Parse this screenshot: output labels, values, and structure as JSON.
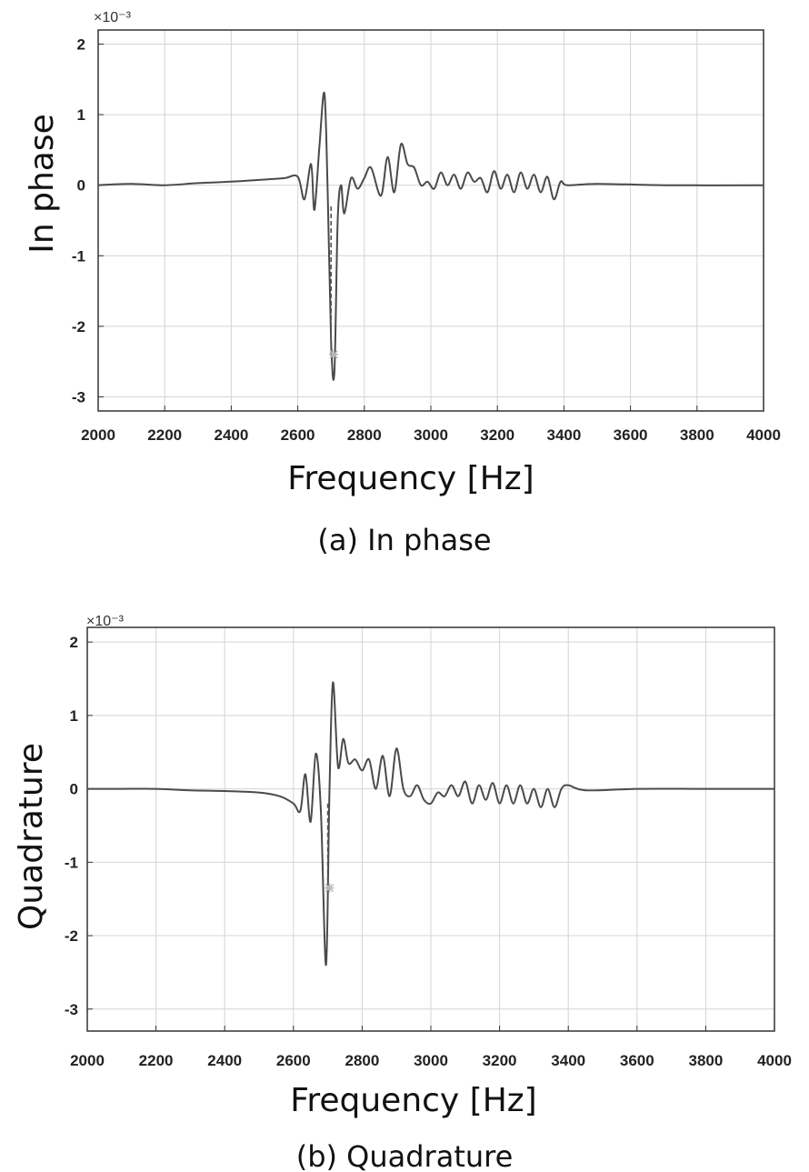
{
  "chart_data": [
    {
      "type": "line",
      "panel": "a",
      "caption": "(a) In phase",
      "xlabel": "Frequency [Hz]",
      "ylabel": "In phase",
      "exponent_label": "×10⁻³",
      "xlim": [
        2000,
        4000
      ],
      "ylim": [
        -3.2,
        2.2
      ],
      "grid": true,
      "xticks": [
        "2000",
        "2200",
        "2400",
        "2600",
        "2800",
        "3000",
        "3200",
        "3400",
        "3600",
        "3800",
        "4000"
      ],
      "yticks": [
        "2",
        "1",
        "0",
        "-1",
        "-2",
        "-3"
      ],
      "x": [
        2000,
        2100,
        2200,
        2300,
        2400,
        2500,
        2560,
        2600,
        2620,
        2640,
        2650,
        2665,
        2680,
        2690,
        2700,
        2710,
        2720,
        2730,
        2740,
        2760,
        2780,
        2800,
        2820,
        2850,
        2870,
        2890,
        2910,
        2930,
        2950,
        2970,
        2990,
        3010,
        3030,
        3050,
        3070,
        3090,
        3110,
        3130,
        3150,
        3170,
        3190,
        3210,
        3230,
        3250,
        3270,
        3290,
        3310,
        3330,
        3350,
        3370,
        3390,
        3410,
        3500,
        3700,
        4000
      ],
      "y": [
        0.0,
        0.02,
        0.0,
        0.03,
        0.05,
        0.08,
        0.1,
        0.12,
        -0.2,
        0.3,
        -0.35,
        0.55,
        1.3,
        -0.1,
        -2.2,
        -2.65,
        -0.5,
        0.0,
        -0.4,
        0.1,
        -0.05,
        0.1,
        0.25,
        -0.15,
        0.4,
        -0.1,
        0.58,
        0.3,
        0.25,
        0.0,
        0.05,
        -0.05,
        0.18,
        0.0,
        0.15,
        -0.05,
        0.18,
        0.05,
        0.1,
        -0.1,
        0.2,
        -0.05,
        0.15,
        -0.1,
        0.18,
        -0.05,
        0.15,
        -0.1,
        0.12,
        -0.2,
        0.05,
        0.0,
        0.02,
        0.0,
        0.0
      ],
      "marker": {
        "x": 2708,
        "y": -2.4
      },
      "dashed_segment": {
        "x": 2700,
        "y_from": -0.3,
        "y_to": -2.4
      }
    },
    {
      "type": "line",
      "panel": "b",
      "caption": "(b) Quadrature",
      "xlabel": "Frequency [Hz]",
      "ylabel": "Quadrature",
      "exponent_label": "×10⁻³",
      "xlim": [
        2000,
        4000
      ],
      "ylim": [
        -3.3,
        2.2
      ],
      "grid": true,
      "xticks": [
        "2000",
        "2200",
        "2400",
        "2600",
        "2800",
        "3000",
        "3200",
        "3400",
        "3600",
        "3800",
        "4000"
      ],
      "yticks": [
        "2",
        "1",
        "0",
        "-1",
        "-2",
        "-3"
      ],
      "x": [
        2000,
        2100,
        2200,
        2300,
        2400,
        2500,
        2560,
        2600,
        2620,
        2635,
        2650,
        2665,
        2680,
        2695,
        2705,
        2715,
        2730,
        2745,
        2760,
        2780,
        2800,
        2820,
        2840,
        2860,
        2880,
        2900,
        2920,
        2940,
        2960,
        2980,
        3000,
        3020,
        3040,
        3060,
        3080,
        3100,
        3120,
        3140,
        3160,
        3180,
        3200,
        3220,
        3240,
        3260,
        3280,
        3300,
        3320,
        3340,
        3360,
        3380,
        3400,
        3450,
        3600,
        3800,
        4000
      ],
      "y": [
        0.0,
        0.0,
        0.0,
        -0.02,
        -0.03,
        -0.05,
        -0.1,
        -0.2,
        -0.3,
        0.2,
        -0.45,
        0.48,
        -0.3,
        -2.4,
        0.0,
        1.45,
        0.3,
        0.68,
        0.35,
        0.4,
        0.25,
        0.4,
        0.0,
        0.45,
        -0.1,
        0.55,
        0.0,
        -0.1,
        0.05,
        -0.15,
        -0.2,
        -0.05,
        -0.1,
        0.05,
        -0.1,
        0.1,
        -0.2,
        0.05,
        -0.15,
        0.08,
        -0.2,
        0.05,
        -0.2,
        0.05,
        -0.2,
        0.0,
        -0.25,
        0.0,
        -0.25,
        0.0,
        0.05,
        -0.02,
        0.0,
        0.0,
        0.0
      ],
      "marker": {
        "x": 2705,
        "y": -1.35
      },
      "dashed_segment": {
        "x": 2700,
        "y_from": -0.2,
        "y_to": -1.35
      }
    }
  ]
}
